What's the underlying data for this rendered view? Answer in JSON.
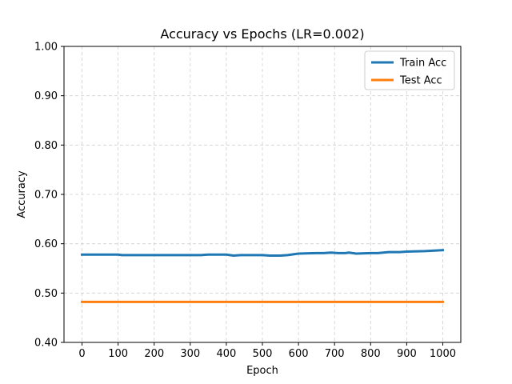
{
  "chart_data": {
    "type": "line",
    "title": "Accuracy vs Epochs (LR=0.002)",
    "xlabel": "Epoch",
    "ylabel": "Accuracy",
    "xlim": [
      -50,
      1050
    ],
    "ylim": [
      0.4,
      1.0
    ],
    "xticks": [
      0,
      100,
      200,
      300,
      400,
      500,
      600,
      700,
      800,
      900,
      1000
    ],
    "yticks": [
      0.4,
      0.5,
      0.6,
      0.7,
      0.8,
      0.9,
      1.0
    ],
    "xtick_labels": [
      "0",
      "100",
      "200",
      "300",
      "400",
      "500",
      "600",
      "700",
      "800",
      "900",
      "1000"
    ],
    "ytick_labels": [
      "0.40",
      "0.50",
      "0.60",
      "0.70",
      "0.80",
      "0.90",
      "1.00"
    ],
    "grid": true,
    "legend_position": "top-right",
    "series": [
      {
        "name": "Train Acc",
        "color": "#1f77b4",
        "x": [
          0,
          50,
          100,
          110,
          150,
          200,
          250,
          300,
          330,
          350,
          400,
          420,
          440,
          500,
          520,
          550,
          570,
          600,
          650,
          670,
          690,
          710,
          730,
          740,
          760,
          800,
          820,
          850,
          880,
          900,
          950,
          1000
        ],
        "y": [
          0.578,
          0.578,
          0.578,
          0.577,
          0.577,
          0.577,
          0.577,
          0.577,
          0.577,
          0.578,
          0.578,
          0.576,
          0.577,
          0.577,
          0.576,
          0.576,
          0.577,
          0.58,
          0.581,
          0.581,
          0.582,
          0.581,
          0.581,
          0.582,
          0.58,
          0.581,
          0.581,
          0.583,
          0.583,
          0.584,
          0.585,
          0.587
        ]
      },
      {
        "name": "Test Acc",
        "color": "#ff7f0e",
        "x": [
          0,
          1000
        ],
        "y": [
          0.482,
          0.482
        ]
      }
    ]
  }
}
